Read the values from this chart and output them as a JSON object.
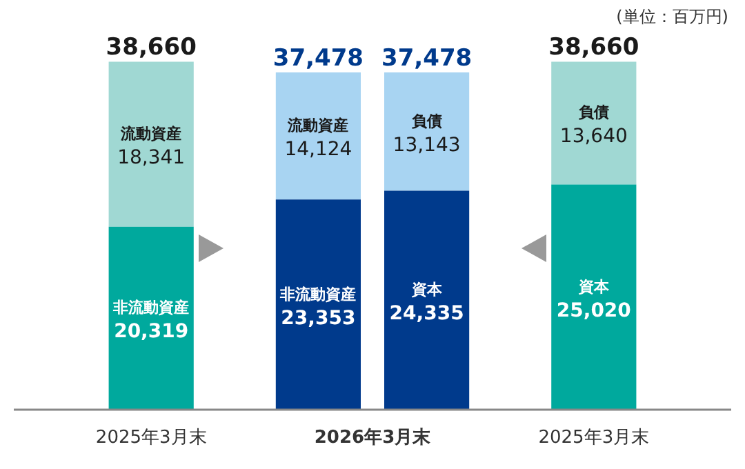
{
  "chart_data": {
    "type": "bar",
    "stacked": true,
    "tick_labels": "x",
    "legend": false,
    "categories": [
      "2025年3月末",
      "2026年3月末",
      null,
      "2025年3月末"
    ],
    "series": [
      {
        "name": "非流動資産",
        "colors": [
          "#00a99d",
          "#003a8c",
          null,
          null
        ],
        "values": [
          20319,
          23353,
          null,
          null
        ],
        "value_labels": [
          "20,319",
          "23,353",
          null,
          null
        ]
      },
      {
        "name": "流動資産",
        "colors": [
          "#a0d8d3",
          "#a8d4f2",
          null,
          null
        ],
        "values": [
          18341,
          14124,
          null,
          null
        ],
        "value_labels": [
          "18,341",
          "14,124",
          null,
          null
        ]
      },
      {
        "name": "資本",
        "colors": [
          null,
          null,
          "#003a8c",
          "#00a99d"
        ],
        "values": [
          null,
          null,
          24335,
          25020
        ],
        "value_labels": [
          null,
          null,
          "24,335",
          "25,020"
        ]
      },
      {
        "name": "負債",
        "colors": [
          null,
          null,
          "#a8d4f2",
          "#a0d8d3"
        ],
        "values": [
          null,
          null,
          13143,
          13640
        ],
        "value_labels": [
          null,
          null,
          "13,143",
          "13,640"
        ]
      }
    ],
    "totals": [
      "38,660",
      "37,478",
      "37,478",
      "38,660"
    ],
    "annotations": [
      "(単位：百万円)"
    ]
  }
}
